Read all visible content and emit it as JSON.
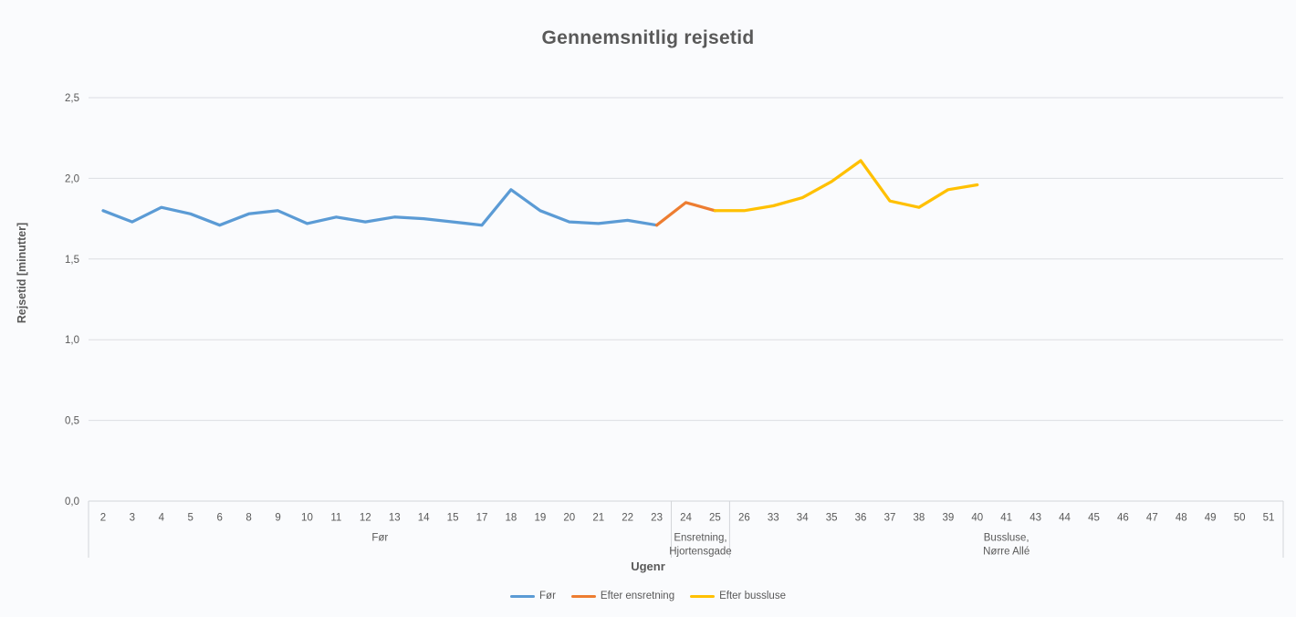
{
  "chart_data": {
    "type": "line",
    "title": "Gennemsnitlig rejsetid",
    "xlabel": "Ugenr",
    "ylabel": "Rejsetid [minutter]",
    "ylim": [
      0,
      2.5
    ],
    "ytick_step": 0.5,
    "ytick_labels": [
      "0,0",
      "0,5",
      "1,0",
      "1,5",
      "2,0",
      "2,5"
    ],
    "grid": true,
    "legend_position": "bottom",
    "categories": [
      2,
      3,
      4,
      5,
      6,
      8,
      9,
      10,
      11,
      12,
      13,
      14,
      15,
      17,
      18,
      19,
      20,
      21,
      22,
      23,
      24,
      25,
      26,
      33,
      34,
      35,
      36,
      37,
      38,
      39,
      40,
      41,
      43,
      44,
      45,
      46,
      47,
      48,
      49,
      50,
      51
    ],
    "groups": [
      {
        "lines": [
          "Før"
        ],
        "from": 0,
        "to": 19
      },
      {
        "lines": [
          "Ensretning,",
          "Hjortensgade"
        ],
        "from": 20,
        "to": 21
      },
      {
        "lines": [
          "Bussluse,",
          "Nørre Allé"
        ],
        "from": 22,
        "to": 40
      }
    ],
    "series": [
      {
        "name": "Før",
        "color": "#5B9BD5",
        "points": [
          [
            2,
            1.8
          ],
          [
            3,
            1.73
          ],
          [
            4,
            1.82
          ],
          [
            5,
            1.78
          ],
          [
            6,
            1.71
          ],
          [
            8,
            1.78
          ],
          [
            9,
            1.8
          ],
          [
            10,
            1.72
          ],
          [
            11,
            1.76
          ],
          [
            12,
            1.73
          ],
          [
            13,
            1.76
          ],
          [
            14,
            1.75
          ],
          [
            15,
            1.73
          ],
          [
            17,
            1.71
          ],
          [
            18,
            1.93
          ],
          [
            19,
            1.8
          ],
          [
            20,
            1.73
          ],
          [
            21,
            1.72
          ],
          [
            22,
            1.74
          ],
          [
            23,
            1.71
          ]
        ]
      },
      {
        "name": "Efter ensretning",
        "color": "#ED7D31",
        "points": [
          [
            23,
            1.71
          ],
          [
            24,
            1.85
          ],
          [
            25,
            1.8
          ]
        ]
      },
      {
        "name": "Efter bussluse",
        "color": "#FFC000",
        "points": [
          [
            25,
            1.8
          ],
          [
            26,
            1.8
          ],
          [
            33,
            1.83
          ],
          [
            34,
            1.88
          ],
          [
            35,
            1.98
          ],
          [
            36,
            2.11
          ],
          [
            37,
            1.86
          ],
          [
            38,
            1.82
          ],
          [
            39,
            1.93
          ],
          [
            40,
            1.96
          ]
        ]
      }
    ]
  },
  "colors": {
    "background": "#fafbfd",
    "gridline": "#dcdee2",
    "axis_line": "#d2d5d9",
    "text": "#595959"
  }
}
